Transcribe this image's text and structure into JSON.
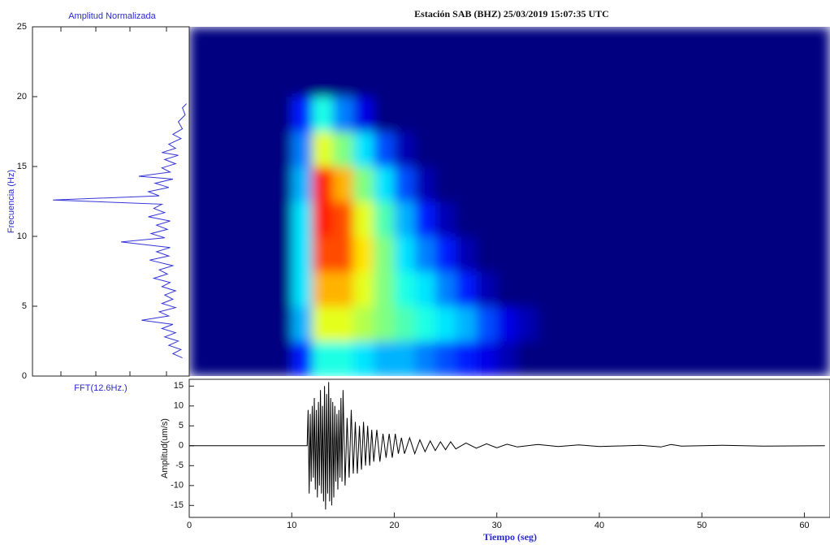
{
  "chart_data": [
    {
      "type": "fft",
      "title": "Amplitud Normalizada",
      "xlabel": "FFT(12.6Hz.)",
      "ylabel": "Frecuencia (Hz)",
      "orientation": "horizontal",
      "color": "#3434d8",
      "x": [
        1.3,
        1.6,
        1.9,
        2.2,
        2.5,
        2.8,
        3.1,
        3.4,
        3.7,
        4.0,
        4.3,
        4.6,
        4.9,
        5.2,
        5.5,
        5.8,
        6.1,
        6.4,
        6.7,
        7.0,
        7.3,
        7.6,
        7.9,
        8.3,
        8.6,
        8.9,
        9.2,
        9.6,
        9.9,
        10.2,
        10.5,
        10.8,
        11.1,
        11.4,
        11.7,
        12.0,
        12.3,
        12.6,
        12.9,
        13.2,
        13.5,
        13.8,
        14.1,
        14.3,
        14.6,
        14.9,
        15.2,
        15.5,
        15.8,
        16.0,
        16.3,
        16.6,
        17.0,
        17.3,
        17.7,
        18.2,
        18.7,
        19.2,
        19.5
      ],
      "values": [
        0.05,
        0.12,
        0.06,
        0.15,
        0.08,
        0.18,
        0.1,
        0.2,
        0.12,
        0.35,
        0.15,
        0.22,
        0.1,
        0.2,
        0.12,
        0.18,
        0.1,
        0.2,
        0.14,
        0.26,
        0.16,
        0.22,
        0.12,
        0.29,
        0.15,
        0.24,
        0.14,
        0.5,
        0.18,
        0.28,
        0.16,
        0.24,
        0.14,
        0.3,
        0.18,
        0.26,
        0.2,
        1.0,
        0.22,
        0.3,
        0.15,
        0.25,
        0.12,
        0.37,
        0.14,
        0.2,
        0.1,
        0.18,
        0.08,
        0.2,
        0.1,
        0.15,
        0.06,
        0.12,
        0.05,
        0.08,
        0.03,
        0.05,
        0.02
      ],
      "xlim": [
        0,
        25
      ],
      "xticks": [
        0,
        5,
        10,
        15,
        20,
        25
      ],
      "ylim": [
        0,
        1.15
      ],
      "reversed": true
    },
    {
      "type": "heatmap",
      "title": "Estación SAB (BHZ)  25/03/2019 15:07:35 UTC",
      "colormap": "jet",
      "xlim": [
        0,
        62.5
      ],
      "ylim": [
        0,
        25
      ],
      "x_edges": [
        0,
        2,
        4,
        6,
        8,
        10,
        12,
        14,
        16,
        18,
        20,
        22,
        24,
        26,
        28,
        30,
        32,
        34,
        36,
        38,
        40,
        42,
        44,
        46,
        48,
        50,
        52,
        54,
        56,
        58,
        60,
        62
      ],
      "y_edges": [
        0,
        2.5,
        5,
        7.5,
        10,
        12.5,
        15,
        17.5,
        20,
        22.5,
        25
      ],
      "z": [
        [
          0,
          0,
          0,
          0,
          0,
          0.15,
          0.4,
          0.4,
          0.35,
          0.3,
          0.3,
          0.25,
          0.2,
          0.15,
          0.1,
          0.05,
          0,
          0,
          0,
          0,
          0,
          0,
          0,
          0,
          0,
          0,
          0,
          0,
          0,
          0,
          0
        ],
        [
          0,
          0,
          0,
          0,
          0,
          0.3,
          0.6,
          0.6,
          0.55,
          0.5,
          0.45,
          0.4,
          0.35,
          0.3,
          0.2,
          0.1,
          0.05,
          0,
          0,
          0,
          0,
          0,
          0,
          0,
          0,
          0,
          0,
          0,
          0,
          0,
          0
        ],
        [
          0,
          0,
          0,
          0,
          0,
          0.35,
          0.7,
          0.7,
          0.6,
          0.5,
          0.4,
          0.35,
          0.25,
          0.15,
          0.05,
          0,
          0,
          0,
          0,
          0,
          0,
          0,
          0,
          0,
          0,
          0,
          0,
          0,
          0,
          0,
          0
        ],
        [
          0,
          0,
          0,
          0,
          0,
          0.35,
          0.8,
          0.8,
          0.65,
          0.5,
          0.35,
          0.25,
          0.15,
          0.05,
          0,
          0,
          0,
          0,
          0,
          0,
          0,
          0,
          0,
          0,
          0,
          0,
          0,
          0,
          0,
          0,
          0
        ],
        [
          0,
          0,
          0,
          0,
          0,
          0.35,
          0.85,
          0.8,
          0.6,
          0.45,
          0.3,
          0.15,
          0.05,
          0,
          0,
          0,
          0,
          0,
          0,
          0,
          0,
          0,
          0,
          0,
          0,
          0,
          0,
          0,
          0,
          0,
          0
        ],
        [
          0,
          0,
          0,
          0,
          0,
          0.3,
          0.85,
          0.7,
          0.5,
          0.35,
          0.2,
          0.05,
          0,
          0,
          0,
          0,
          0,
          0,
          0,
          0,
          0,
          0,
          0,
          0,
          0,
          0,
          0,
          0,
          0,
          0,
          0
        ],
        [
          0,
          0,
          0,
          0,
          0,
          0.25,
          0.6,
          0.5,
          0.35,
          0.2,
          0.05,
          0,
          0,
          0,
          0,
          0,
          0,
          0,
          0,
          0,
          0,
          0,
          0,
          0,
          0,
          0,
          0,
          0,
          0,
          0,
          0
        ],
        [
          0,
          0,
          0,
          0,
          0,
          0.15,
          0.4,
          0.25,
          0.1,
          0,
          0,
          0,
          0,
          0,
          0,
          0,
          0,
          0,
          0,
          0,
          0,
          0,
          0,
          0,
          0,
          0,
          0,
          0,
          0,
          0,
          0
        ],
        [
          0,
          0,
          0,
          0,
          0,
          0,
          0,
          0,
          0,
          0,
          0,
          0,
          0,
          0,
          0,
          0,
          0,
          0,
          0,
          0,
          0,
          0,
          0,
          0,
          0,
          0,
          0,
          0,
          0,
          0,
          0
        ],
        [
          0,
          0,
          0,
          0,
          0,
          0,
          0,
          0,
          0,
          0,
          0,
          0,
          0,
          0,
          0,
          0,
          0,
          0,
          0,
          0,
          0,
          0,
          0,
          0,
          0,
          0,
          0,
          0,
          0,
          0,
          0
        ]
      ]
    },
    {
      "type": "line",
      "xlabel": "Tiempo (seg)",
      "ylabel": "Amplitud(um/s)",
      "color": "#000000",
      "xlim": [
        0,
        62.5
      ],
      "xticks": [
        0,
        10,
        20,
        30,
        40,
        50,
        60
      ],
      "ylim": [
        -18,
        16.7
      ],
      "yticks": [
        -15,
        -10,
        -5,
        0,
        5,
        10,
        15
      ],
      "x": [
        0,
        11.5,
        11.6,
        11.7,
        11.8,
        11.9,
        12.0,
        12.1,
        12.2,
        12.3,
        12.4,
        12.5,
        12.6,
        12.7,
        12.8,
        12.9,
        13.0,
        13.1,
        13.2,
        13.3,
        13.4,
        13.5,
        13.6,
        13.7,
        13.8,
        13.9,
        14.0,
        14.1,
        14.2,
        14.3,
        14.4,
        14.5,
        14.6,
        14.7,
        14.8,
        14.9,
        15.0,
        15.2,
        15.4,
        15.6,
        15.8,
        16.0,
        16.2,
        16.4,
        16.6,
        16.8,
        17.0,
        17.2,
        17.4,
        17.6,
        17.8,
        18.0,
        18.3,
        18.6,
        18.9,
        19.2,
        19.5,
        19.8,
        20.1,
        20.4,
        20.7,
        21.0,
        21.5,
        22,
        22.5,
        23,
        23.5,
        24,
        24.5,
        25,
        25.5,
        26,
        27,
        28,
        29,
        30,
        31,
        32,
        34,
        36,
        38,
        40,
        44,
        46,
        47,
        48,
        52,
        56,
        62
      ],
      "values": [
        0,
        0,
        9,
        -12,
        8,
        -9,
        10,
        -8,
        12,
        -11,
        9,
        -13,
        11,
        -10,
        14,
        -12,
        10,
        -14,
        15,
        -16,
        13,
        -12,
        16,
        -14,
        12,
        -15,
        11,
        -13,
        10,
        -9,
        8,
        -11,
        9,
        -8,
        12,
        -9,
        14,
        -10,
        7,
        -8,
        9,
        -7,
        6,
        -7,
        5,
        -6,
        6,
        -5,
        5,
        -5,
        4,
        -4,
        4,
        -4,
        3,
        -3,
        3,
        -3,
        3,
        -2,
        2,
        -2,
        2,
        -2,
        1.5,
        -1.5,
        1.2,
        -1.2,
        1,
        -1,
        1,
        -0.8,
        0.7,
        -0.6,
        0.5,
        -0.5,
        0.4,
        -0.3,
        0.3,
        -0.2,
        0.2,
        -0.2,
        0.1,
        -0.3,
        0.3,
        -0.1,
        0.1,
        -0.1,
        0
      ]
    }
  ]
}
